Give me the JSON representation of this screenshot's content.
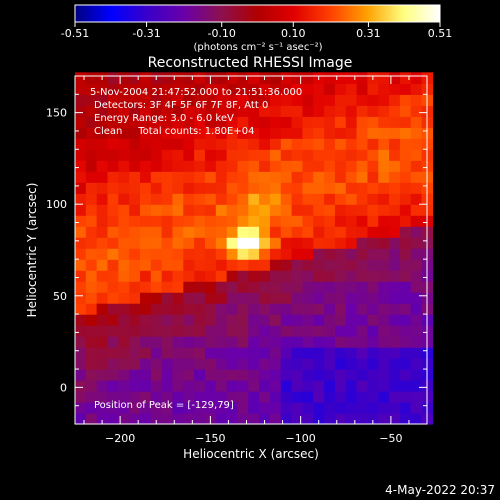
{
  "chart_data": {
    "type": "heatmap",
    "title": "Reconstructed RHESSI Image",
    "colorbar": {
      "ticks": [
        "-0.51",
        "-0.31",
        "-0.10",
        "0.10",
        "0.31",
        "0.51"
      ],
      "range": [
        -0.51,
        0.51
      ],
      "units": "(photons cm⁻² s⁻¹ asec⁻²)",
      "colormap": [
        "#000080",
        "#0000ff",
        "#3a00c8",
        "#6a00a8",
        "#8c1050",
        "#b00000",
        "#e00000",
        "#ff4000",
        "#ffa000",
        "#ffff80",
        "#ffffff"
      ]
    },
    "xlabel": "Heliocentric X (arcsec)",
    "ylabel": "Heliocentric Y (arcsec)",
    "xlim": [
      -225,
      -30
    ],
    "ylim": [
      -20,
      170
    ],
    "xticks": [
      -200,
      -150,
      -100,
      -50
    ],
    "yticks": [
      0,
      50,
      100,
      150
    ],
    "annotations": {
      "time_range": "5-Nov-2004 21:47:52.000 to 21:51:36.000",
      "detectors": "Detectors: 3F 4F 5F 6F 7F 8F, Att 0",
      "energy": "Energy Range: 3.0 - 6.0 keV",
      "clean": "Clean     Total counts: 1.80E+04",
      "peak": "Position of Peak = [-129,79]"
    },
    "peak": {
      "x": -129,
      "y": 79,
      "value": 0.51
    },
    "secondary_bright": [
      {
        "x": -125,
        "y": 100,
        "value": 0.2
      },
      {
        "x": -150,
        "y": 62,
        "value": 0.15
      },
      {
        "x": -110,
        "y": 125,
        "value": 0.14
      }
    ]
  },
  "footer": {
    "timestamp": "4-May-2022 20:37"
  }
}
